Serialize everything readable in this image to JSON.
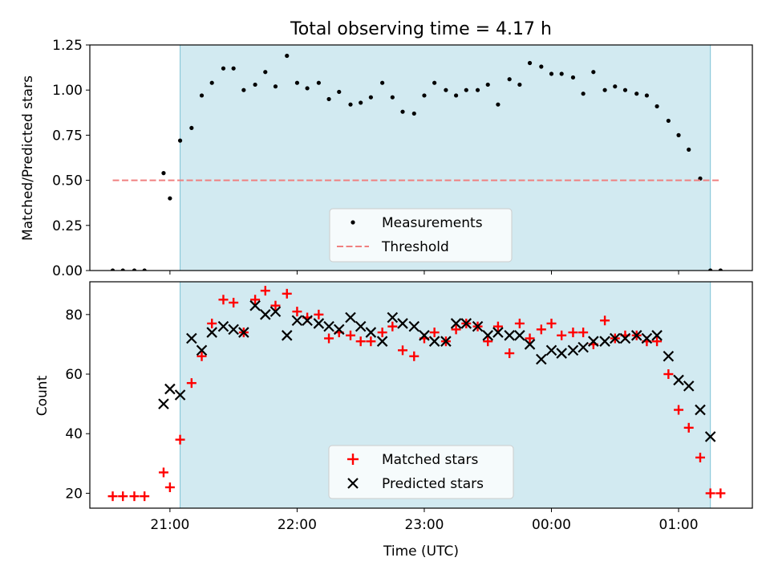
{
  "chart_data": [
    {
      "type": "scatter",
      "title": "Total observing time = 4.17 h",
      "xlabel": "",
      "ylabel": "Matched/Predicted stars",
      "ylim": [
        0,
        1.25
      ],
      "yticks": [
        0.0,
        0.25,
        0.5,
        0.75,
        1.0,
        1.25
      ],
      "ytick_labels": [
        "0.00",
        "0.25",
        "0.50",
        "0.75",
        "1.00",
        "1.25"
      ],
      "xlim_hours": [
        20.37,
        25.58
      ],
      "xticks_hours": [
        21,
        22,
        23,
        24,
        25
      ],
      "shaded_window_hours": [
        21.08,
        25.25
      ],
      "shaded_color": "#add8e6",
      "legend_position": "lower center",
      "series": [
        {
          "name": "Measurements",
          "kind": "point",
          "color": "#000000",
          "x_hours": [
            20.55,
            20.63,
            20.72,
            20.8,
            20.95,
            21.0,
            21.08,
            21.17,
            21.25,
            21.33,
            21.42,
            21.5,
            21.58,
            21.67,
            21.75,
            21.83,
            21.92,
            22.0,
            22.08,
            22.17,
            22.25,
            22.33,
            22.42,
            22.5,
            22.58,
            22.67,
            22.75,
            22.83,
            22.92,
            23.0,
            23.08,
            23.17,
            23.25,
            23.33,
            23.42,
            23.5,
            23.58,
            23.67,
            23.75,
            23.83,
            23.92,
            24.0,
            24.08,
            24.17,
            24.25,
            24.33,
            24.42,
            24.5,
            24.58,
            24.67,
            24.75,
            24.83,
            24.92,
            25.0,
            25.08,
            25.17,
            25.25,
            25.33
          ],
          "y": [
            0.0,
            0.0,
            0.0,
            0.0,
            0.54,
            0.4,
            0.72,
            0.79,
            0.97,
            1.04,
            1.12,
            1.12,
            1.0,
            1.03,
            1.1,
            1.02,
            1.19,
            1.04,
            1.01,
            1.04,
            0.95,
            0.99,
            0.92,
            0.93,
            0.96,
            1.04,
            0.96,
            0.88,
            0.87,
            0.97,
            1.04,
            1.0,
            0.97,
            1.0,
            1.0,
            1.03,
            0.92,
            1.06,
            1.03,
            1.15,
            1.13,
            1.09,
            1.09,
            1.07,
            0.98,
            1.1,
            1.0,
            1.02,
            1.0,
            0.98,
            0.97,
            0.91,
            0.83,
            0.75,
            0.67,
            0.51,
            0.0,
            0.0
          ]
        },
        {
          "name": "Threshold",
          "kind": "dashed-line",
          "color": "#f08080",
          "x_hours": [
            20.55,
            25.33
          ],
          "y": [
            0.5,
            0.5
          ]
        }
      ]
    },
    {
      "type": "scatter",
      "title": "",
      "xlabel": "Time (UTC)",
      "ylabel": "Count",
      "ylim": [
        15,
        91
      ],
      "yticks": [
        20,
        40,
        60,
        80
      ],
      "ytick_labels": [
        "20",
        "40",
        "60",
        "80"
      ],
      "xlim_hours": [
        20.37,
        25.58
      ],
      "xticks_hours": [
        21,
        22,
        23,
        24,
        25
      ],
      "xtick_labels": [
        "21:00",
        "22:00",
        "23:00",
        "00:00",
        "01:00"
      ],
      "shaded_window_hours": [
        21.08,
        25.25
      ],
      "shaded_color": "#add8e6",
      "legend_position": "lower center",
      "series": [
        {
          "name": "Matched stars",
          "kind": "plus",
          "color": "#ff0000",
          "x_hours": [
            20.55,
            20.63,
            20.72,
            20.8,
            20.95,
            21.0,
            21.08,
            21.17,
            21.25,
            21.33,
            21.42,
            21.5,
            21.58,
            21.67,
            21.75,
            21.83,
            21.92,
            22.0,
            22.08,
            22.17,
            22.25,
            22.33,
            22.42,
            22.5,
            22.58,
            22.67,
            22.75,
            22.83,
            22.92,
            23.0,
            23.08,
            23.17,
            23.25,
            23.33,
            23.42,
            23.5,
            23.58,
            23.67,
            23.75,
            23.83,
            23.92,
            24.0,
            24.08,
            24.17,
            24.25,
            24.33,
            24.42,
            24.5,
            24.58,
            24.67,
            24.75,
            24.83,
            24.92,
            25.0,
            25.08,
            25.17,
            25.25,
            25.33
          ],
          "y": [
            19,
            19,
            19,
            19,
            27,
            22,
            38,
            57,
            66,
            77,
            85,
            84,
            74,
            85,
            88,
            83,
            87,
            81,
            79,
            80,
            72,
            74,
            73,
            71,
            71,
            74,
            76,
            68,
            66,
            72,
            74,
            71,
            75,
            77,
            76,
            71,
            76,
            67,
            77,
            72,
            75,
            77,
            73,
            74,
            74,
            70,
            78,
            72,
            73,
            73,
            71,
            71,
            60,
            48,
            42,
            32,
            20,
            20
          ]
        },
        {
          "name": "Predicted stars",
          "kind": "cross",
          "color": "#000000",
          "x_hours": [
            20.95,
            21.0,
            21.08,
            21.17,
            21.25,
            21.33,
            21.42,
            21.5,
            21.58,
            21.67,
            21.75,
            21.83,
            21.92,
            22.0,
            22.08,
            22.17,
            22.25,
            22.33,
            22.42,
            22.5,
            22.58,
            22.67,
            22.75,
            22.83,
            22.92,
            23.0,
            23.08,
            23.17,
            23.25,
            23.33,
            23.42,
            23.5,
            23.58,
            23.67,
            23.75,
            23.83,
            23.92,
            24.0,
            24.08,
            24.17,
            24.25,
            24.33,
            24.42,
            24.5,
            24.58,
            24.67,
            24.75,
            24.83,
            24.92,
            25.0,
            25.08,
            25.17,
            25.25
          ],
          "y": [
            50,
            55,
            53,
            72,
            68,
            74,
            76,
            75,
            74,
            83,
            80,
            81,
            73,
            78,
            78,
            77,
            76,
            75,
            79,
            76,
            74,
            71,
            79,
            77,
            76,
            73,
            71,
            71,
            77,
            77,
            76,
            73,
            74,
            73,
            73,
            70,
            65,
            68,
            67,
            68,
            69,
            71,
            71,
            72,
            72,
            73,
            72,
            73,
            66,
            58,
            56,
            48,
            39
          ]
        }
      ]
    }
  ]
}
